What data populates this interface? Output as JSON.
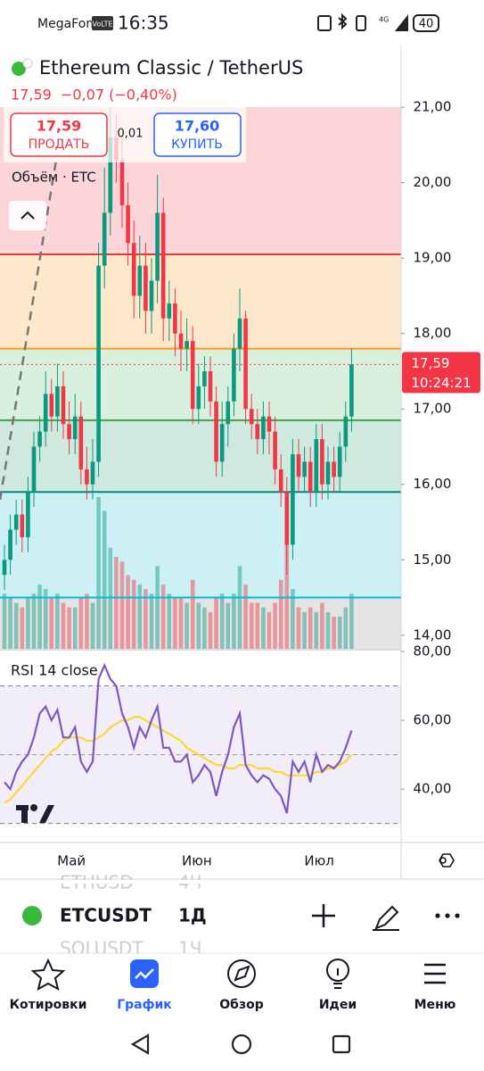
{
  "status_bar": {
    "carrier": "MegaFon",
    "volte": "VoLTE",
    "time": "16:35",
    "battery": "40"
  },
  "header": {
    "title": "Ethereum Classic / TetherUS",
    "price": "17,59",
    "change": "−0,07 (−0,40%)"
  },
  "trade": {
    "sell_price": "17,59",
    "sell": "ПРОДАТЬ",
    "spread": "0,01",
    "buy_price": "17,60",
    "buy": "КУПИТЬ"
  },
  "chart_data": {
    "type": "candlestick",
    "volume_label": "Объём · ETC",
    "up_color": "#089981",
    "down_color": "#f23645",
    "open": [
      14.8,
      15.0,
      15.4,
      15.6,
      15.3,
      15.9,
      16.5,
      16.7,
      17.2,
      16.9,
      17.3,
      16.8,
      16.6,
      16.9,
      16.2,
      16.0,
      16.3,
      18.9,
      19.6,
      20.6,
      20.3,
      19.7,
      19.2,
      18.5,
      18.9,
      18.3,
      18.7,
      19.6,
      18.2,
      18.4,
      18.0,
      17.8,
      17.9,
      17.0,
      17.3,
      17.5,
      17.1,
      16.3,
      16.8,
      17.1,
      17.8,
      18.2,
      17.0,
      16.8,
      16.6,
      16.9,
      16.7,
      16.2,
      15.9,
      15.2,
      16.4,
      16.1,
      16.3,
      15.9,
      16.6,
      16.0,
      16.3,
      16.1,
      16.5,
      16.9
    ],
    "high": [
      15.2,
      15.6,
      15.8,
      15.8,
      16.1,
      16.7,
      16.9,
      17.5,
      17.4,
      17.6,
      17.5,
      17.1,
      17.2,
      17.1,
      16.5,
      16.6,
      19.2,
      20.2,
      21.0,
      20.9,
      20.6,
      20.0,
      19.5,
      19.3,
      19.2,
      19.0,
      20.1,
      19.8,
      18.7,
      18.6,
      18.3,
      18.2,
      18.1,
      17.6,
      17.7,
      17.7,
      17.3,
      17.1,
      17.3,
      18.0,
      18.6,
      18.3,
      17.2,
      17.0,
      17.1,
      17.1,
      16.9,
      16.4,
      16.1,
      16.6,
      16.6,
      16.5,
      16.5,
      16.8,
      16.8,
      16.5,
      16.5,
      16.7,
      17.1,
      17.8
    ],
    "low": [
      14.6,
      14.8,
      15.2,
      15.1,
      15.1,
      15.7,
      16.3,
      16.5,
      16.7,
      16.7,
      16.6,
      16.4,
      16.4,
      16.0,
      15.8,
      15.8,
      16.1,
      18.6,
      19.3,
      20.0,
      19.4,
      18.9,
      18.2,
      18.2,
      18.0,
      18.0,
      18.4,
      17.9,
      17.9,
      17.7,
      17.5,
      17.5,
      16.8,
      16.8,
      17.0,
      16.9,
      16.1,
      16.1,
      16.5,
      16.9,
      17.5,
      16.8,
      16.6,
      16.4,
      16.4,
      16.4,
      16.0,
      15.7,
      14.8,
      15.0,
      15.9,
      15.9,
      15.7,
      15.7,
      15.8,
      15.8,
      15.9,
      15.9,
      16.3,
      16.7
    ],
    "close": [
      15.0,
      15.4,
      15.6,
      15.3,
      15.9,
      16.5,
      16.7,
      17.2,
      16.9,
      17.3,
      16.8,
      16.6,
      16.9,
      16.2,
      16.0,
      16.3,
      18.9,
      19.6,
      20.6,
      20.3,
      19.7,
      19.2,
      18.5,
      18.9,
      18.3,
      18.7,
      19.6,
      18.2,
      18.4,
      18.0,
      17.8,
      17.9,
      17.0,
      17.3,
      17.5,
      17.1,
      16.3,
      16.8,
      17.1,
      17.8,
      18.2,
      17.0,
      16.8,
      16.6,
      16.9,
      16.7,
      16.2,
      15.9,
      15.2,
      16.4,
      16.1,
      16.3,
      15.9,
      16.6,
      16.0,
      16.3,
      16.1,
      16.5,
      16.9,
      17.59
    ],
    "volume": [
      60,
      55,
      50,
      45,
      55,
      60,
      70,
      65,
      55,
      60,
      50,
      45,
      45,
      55,
      60,
      50,
      165,
      150,
      110,
      100,
      95,
      80,
      75,
      70,
      65,
      60,
      90,
      70,
      60,
      55,
      55,
      50,
      75,
      50,
      45,
      40,
      55,
      60,
      50,
      60,
      90,
      70,
      50,
      50,
      45,
      40,
      50,
      75,
      130,
      65,
      45,
      40,
      45,
      40,
      50,
      40,
      35,
      35,
      45,
      60
    ],
    "ylim": [
      13.82,
      21.83
    ],
    "yticks": [
      {
        "value": 14,
        "label": "14,00"
      },
      {
        "value": 15,
        "label": "15,00"
      },
      {
        "value": 16,
        "label": "16,00"
      },
      {
        "value": 17,
        "label": "17,00"
      },
      {
        "value": 18,
        "label": "18,00"
      },
      {
        "value": 19,
        "label": "19,00"
      },
      {
        "value": 20,
        "label": "20,00"
      },
      {
        "value": 21,
        "label": "21,00"
      }
    ],
    "zones": [
      {
        "from": 19.05,
        "to": 21,
        "color": "#fbd5d8"
      },
      {
        "from": 17.8,
        "to": 19.05,
        "color": "#fde8cb"
      },
      {
        "from": 16.85,
        "to": 17.8,
        "color": "#daf0de"
      },
      {
        "from": 15.9,
        "to": 16.85,
        "color": "#cfe9df"
      },
      {
        "from": 14.5,
        "to": 15.9,
        "color": "#cdf0f4"
      },
      {
        "from": 13.82,
        "to": 14.5,
        "color": "#e4e4e4"
      }
    ],
    "levels": [
      {
        "value": 19.05,
        "color": "#e53935"
      },
      {
        "value": 17.8,
        "color": "#f59c1a"
      },
      {
        "value": 16.85,
        "color": "#43a047"
      },
      {
        "value": 15.9,
        "color": "#00897b"
      },
      {
        "value": 14.5,
        "color": "#00bcd4"
      }
    ],
    "last_price": {
      "value": 17.59,
      "label": "17,59"
    },
    "countdown": "10:24:21",
    "month_ticks": [
      {
        "value": 11.4,
        "label": "Май"
      },
      {
        "value": 32.7,
        "label": "Июн"
      },
      {
        "value": 53.5,
        "label": "Июл"
      }
    ],
    "rsi": {
      "title": "RSI 14 close",
      "ylim": [
        25.5,
        80
      ],
      "yticks": [
        {
          "value": 40,
          "label": "40,00"
        },
        {
          "value": 60,
          "label": "60,00"
        },
        {
          "value": 80,
          "label": "80,00"
        }
      ],
      "bands": [
        30,
        70
      ],
      "midline": 50,
      "series": [
        {
          "color": "#7e57c2",
          "values": [
            42,
            40,
            45,
            48,
            50,
            55,
            62,
            64,
            60,
            63,
            55,
            55,
            58,
            48,
            45,
            48,
            72,
            76,
            72,
            70,
            62,
            58,
            52,
            58,
            55,
            60,
            64,
            52,
            52,
            48,
            48,
            50,
            42,
            44,
            47,
            45,
            38,
            45,
            50,
            58,
            62,
            47,
            44,
            42,
            44,
            43,
            40,
            38,
            33,
            48,
            45,
            48,
            42,
            50,
            45,
            47,
            46,
            48,
            52,
            57
          ]
        },
        {
          "color": "#fdd835",
          "values": [
            36,
            37,
            39,
            41,
            43,
            45,
            47,
            49,
            51,
            52,
            54,
            55,
            55,
            55,
            54,
            54,
            55,
            56,
            58,
            59,
            60,
            60,
            61,
            61,
            60,
            59,
            58,
            57,
            56,
            55,
            54,
            52,
            51,
            50,
            49,
            48,
            47,
            47,
            46,
            46,
            47,
            47,
            47,
            46,
            46,
            46,
            45,
            45,
            44,
            44,
            44,
            44,
            44,
            45,
            45,
            46,
            46,
            47,
            48,
            50
          ]
        }
      ]
    }
  },
  "symbol_bar": {
    "prev_symbol": "ETHUSD",
    "prev_interval": "4Ч",
    "symbol": "ETCUSDT",
    "interval": "1Д",
    "next_symbol": "SOLUSDT",
    "next_interval": "1Ч"
  },
  "nav": [
    "Котировки",
    "График",
    "Обзор",
    "Идеи",
    "Меню"
  ]
}
